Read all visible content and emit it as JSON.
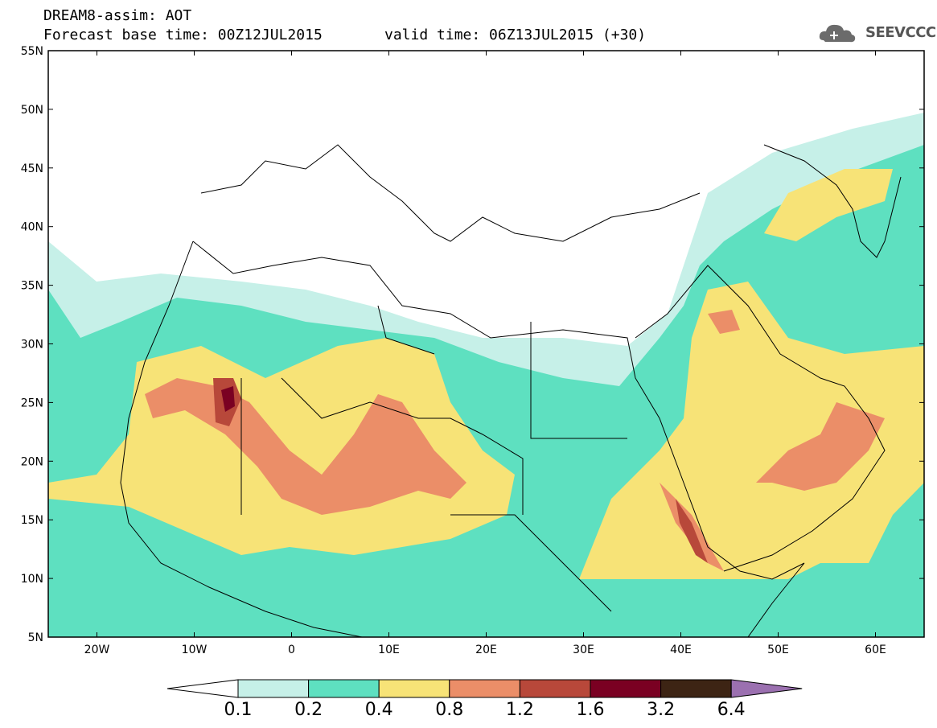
{
  "header": {
    "line1": "DREAM8-assim: AOT",
    "line2": "Forecast base time: 00Z12JUL2015",
    "line3": "valid time: 06Z13JUL2015 (+30)"
  },
  "logo": {
    "text": "SEEVCCC",
    "icon": "cloud-icon"
  },
  "axes": {
    "lat_ticks": [
      "55N",
      "50N",
      "45N",
      "40N",
      "35N",
      "30N",
      "25N",
      "20N",
      "15N",
      "10N",
      "5N"
    ],
    "lon_ticks": [
      "20W",
      "10W",
      "0",
      "10E",
      "20E",
      "30E",
      "40E",
      "50E",
      "60E"
    ],
    "lat_range": [
      5,
      55
    ],
    "lon_range": [
      -25,
      65
    ]
  },
  "legend": {
    "levels": [
      "0.1",
      "0.2",
      "0.4",
      "0.8",
      "1.2",
      "1.6",
      "3.2",
      "6.4"
    ],
    "colors": [
      "#ffffff",
      "#c6f0e8",
      "#5ee0c0",
      "#f7e377",
      "#eb8e68",
      "#b8483a",
      "#7a0022",
      "#3d2414",
      "#9b70b0"
    ]
  },
  "field_colors": {
    "c1": "#c6f0e8",
    "c2": "#5ee0c0",
    "c3": "#f7e377",
    "c4": "#eb8e68",
    "c5": "#b8483a",
    "c6": "#7a0022"
  }
}
